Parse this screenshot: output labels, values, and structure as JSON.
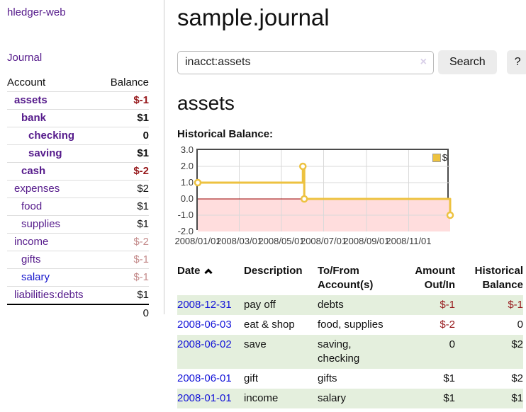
{
  "app": {
    "title": "hledger-web",
    "nav_journal": "Journal"
  },
  "colors": {
    "accent_purple": "#551a8b",
    "link_blue": "#1313d8",
    "negative_strong": "#96181b",
    "negative_soft": "#c48b8b",
    "row_highlight_green": "#e4efdd",
    "button_gray": "#ececec"
  },
  "sidebar": {
    "accounts_header": {
      "account": "Account",
      "balance": "Balance"
    },
    "accounts": [
      {
        "name": "assets",
        "indent": 0,
        "bold": true,
        "balance": "$-1",
        "balance_style": "neg"
      },
      {
        "name": "bank",
        "indent": 1,
        "bold": true,
        "balance": "$1",
        "balance_style": ""
      },
      {
        "name": "checking",
        "indent": 2,
        "bold": true,
        "balance": "0",
        "balance_style": ""
      },
      {
        "name": "saving",
        "indent": 2,
        "bold": true,
        "balance": "$1",
        "balance_style": ""
      },
      {
        "name": "cash",
        "indent": 1,
        "bold": true,
        "balance": "$-2",
        "balance_style": "neg"
      },
      {
        "name": "expenses",
        "indent": 0,
        "bold": false,
        "balance": "$2",
        "balance_style": ""
      },
      {
        "name": "food",
        "indent": 1,
        "bold": false,
        "balance": "$1",
        "balance_style": ""
      },
      {
        "name": "supplies",
        "indent": 1,
        "bold": false,
        "balance": "$1",
        "balance_style": ""
      },
      {
        "name": "income",
        "indent": 0,
        "bold": false,
        "balance": "$-2",
        "balance_style": "neg-soft"
      },
      {
        "name": "gifts",
        "indent": 1,
        "bold": false,
        "balance": "$-1",
        "balance_style": "neg-soft"
      },
      {
        "name": "salary",
        "indent": 1,
        "bold": false,
        "link": "blue",
        "balance": "$-1",
        "balance_style": "neg-soft"
      },
      {
        "name": "liabilities:debts",
        "indent": 0,
        "bold": false,
        "balance": "$1",
        "balance_style": ""
      }
    ],
    "total": "0"
  },
  "header": {
    "title": "sample.journal"
  },
  "search": {
    "value": "inacct:assets",
    "clear_icon": "×",
    "button": "Search",
    "help_button": "?"
  },
  "account_page": {
    "title": "assets",
    "chart_label": "Historical Balance:"
  },
  "chart_data": {
    "type": "line",
    "title": "Historical Balance",
    "step": true,
    "xlim": [
      "2008-01-01",
      "2008-12-31"
    ],
    "ylim": [
      -2,
      3
    ],
    "y_ticks": [
      3,
      2,
      1,
      0,
      -1,
      -2
    ],
    "x_ticks": [
      "2008/01/01",
      "2008/03/01",
      "2008/05/01",
      "2008/07/01",
      "2008/09/01",
      "2008/11/01"
    ],
    "series": [
      {
        "name": "$",
        "color": "#edc240",
        "points": [
          [
            "2008-01-01",
            1
          ],
          [
            "2008-06-01",
            2
          ],
          [
            "2008-06-03",
            0
          ],
          [
            "2008-12-31",
            -1
          ]
        ]
      }
    ],
    "legend_position": "top-right",
    "grid": true,
    "grid_color": "#d9d9d9",
    "border_color": "#4a4a4a",
    "zero_line_color": "#990000",
    "negative_region_color": "#ffdddd"
  },
  "register": {
    "sort_icon": "chevron-up",
    "columns": [
      "Date",
      "Description",
      "To/From Account(s)",
      "Amount Out/In",
      "Historical Balance"
    ],
    "rows": [
      {
        "date": "2008-12-31",
        "description": "pay off",
        "accounts": "debts",
        "amount": "$-1",
        "balance": "$-1"
      },
      {
        "date": "2008-06-03",
        "description": "eat & shop",
        "accounts": "food, supplies",
        "amount": "$-2",
        "balance": "0"
      },
      {
        "date": "2008-06-02",
        "description": "save",
        "accounts": "saving, checking",
        "amount": "0",
        "balance": "$2"
      },
      {
        "date": "2008-06-01",
        "description": "gift",
        "accounts": "gifts",
        "amount": "$1",
        "balance": "$2"
      },
      {
        "date": "2008-01-01",
        "description": "income",
        "accounts": "salary",
        "amount": "$1",
        "balance": "$1"
      }
    ]
  }
}
